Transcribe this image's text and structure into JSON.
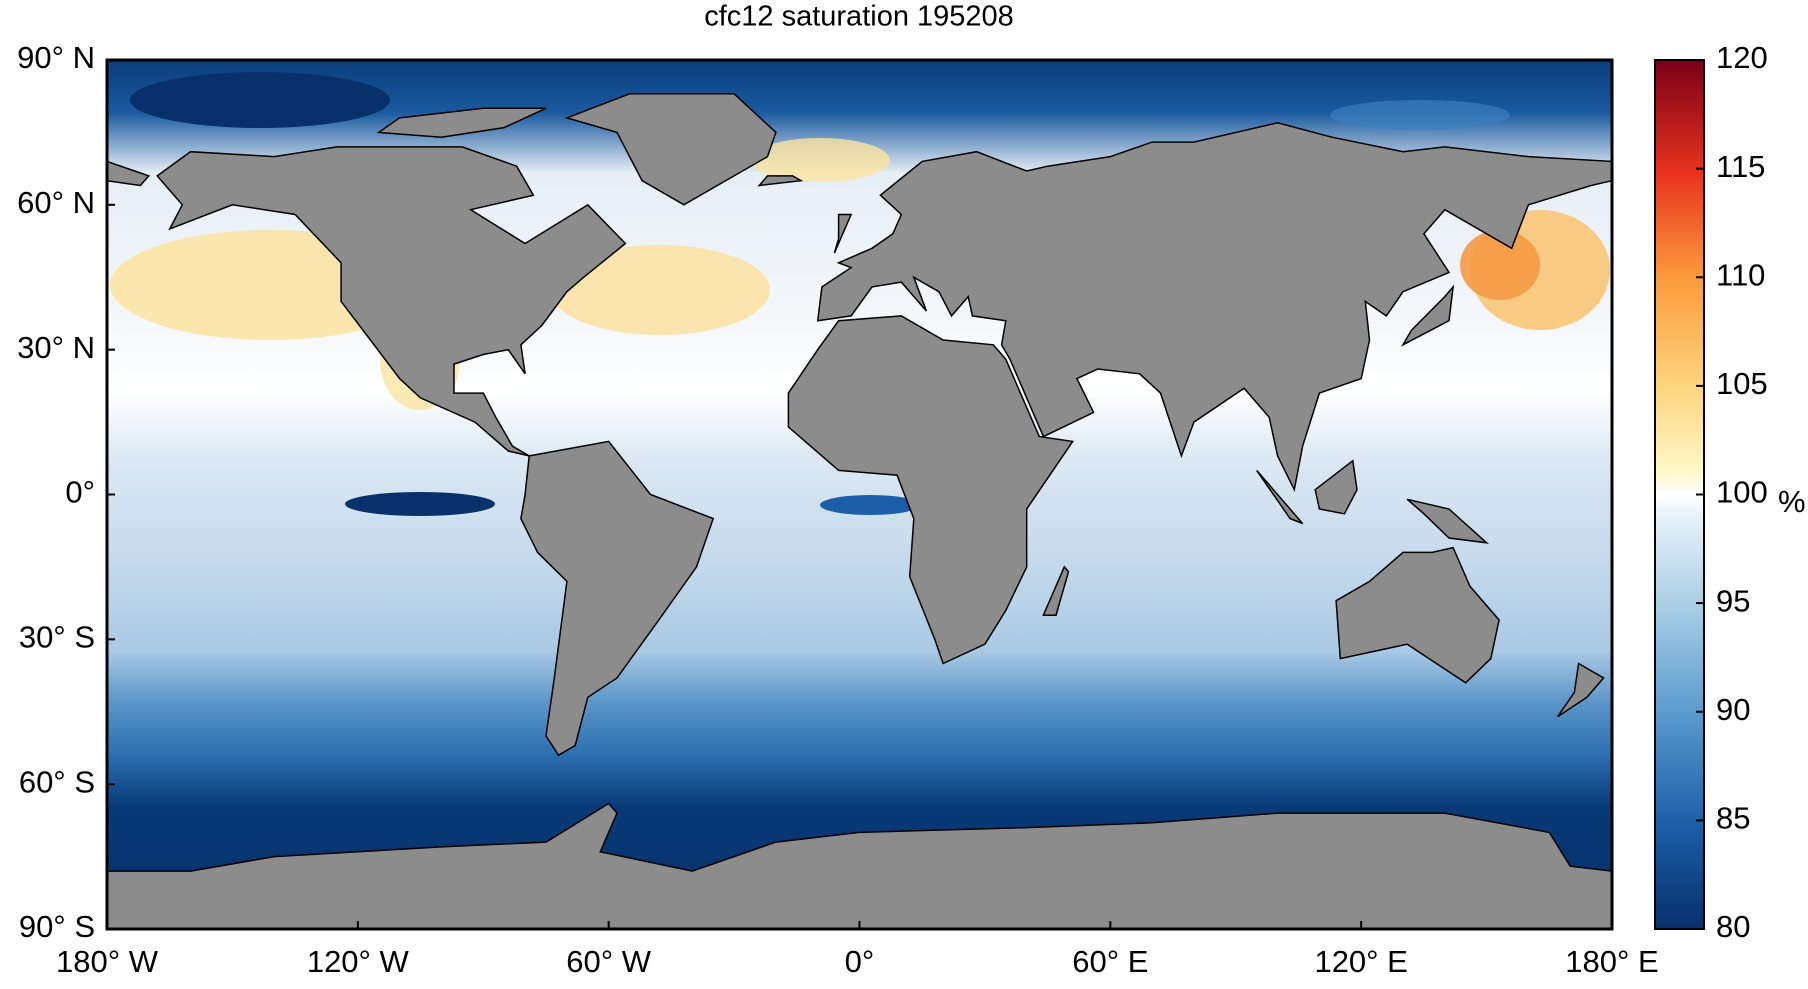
{
  "chart_data": {
    "type": "map",
    "title": "cfc12 saturation 195208",
    "xlim": [
      -180,
      180
    ],
    "xticks": [
      {
        "value": -180,
        "label": "180° W"
      },
      {
        "value": -120,
        "label": "120° W"
      },
      {
        "value": -60,
        "label": "60° W"
      },
      {
        "value": 0,
        "label": "0°"
      },
      {
        "value": 60,
        "label": "60° E"
      },
      {
        "value": 120,
        "label": "120° E"
      },
      {
        "value": 180,
        "label": "180° E"
      }
    ],
    "ylim": [
      -90,
      90
    ],
    "yticks": [
      {
        "value": 90,
        "label": "90° N"
      },
      {
        "value": 60,
        "label": "60° N"
      },
      {
        "value": 30,
        "label": "30° N"
      },
      {
        "value": 0,
        "label": "0°"
      },
      {
        "value": -30,
        "label": "30° S"
      },
      {
        "value": -60,
        "label": "60° S"
      },
      {
        "value": -90,
        "label": "90° S"
      }
    ],
    "colorbar": {
      "lim": [
        80,
        120
      ],
      "ticks": [
        80,
        85,
        90,
        95,
        100,
        105,
        110,
        115,
        120
      ],
      "unit": "%"
    }
  }
}
